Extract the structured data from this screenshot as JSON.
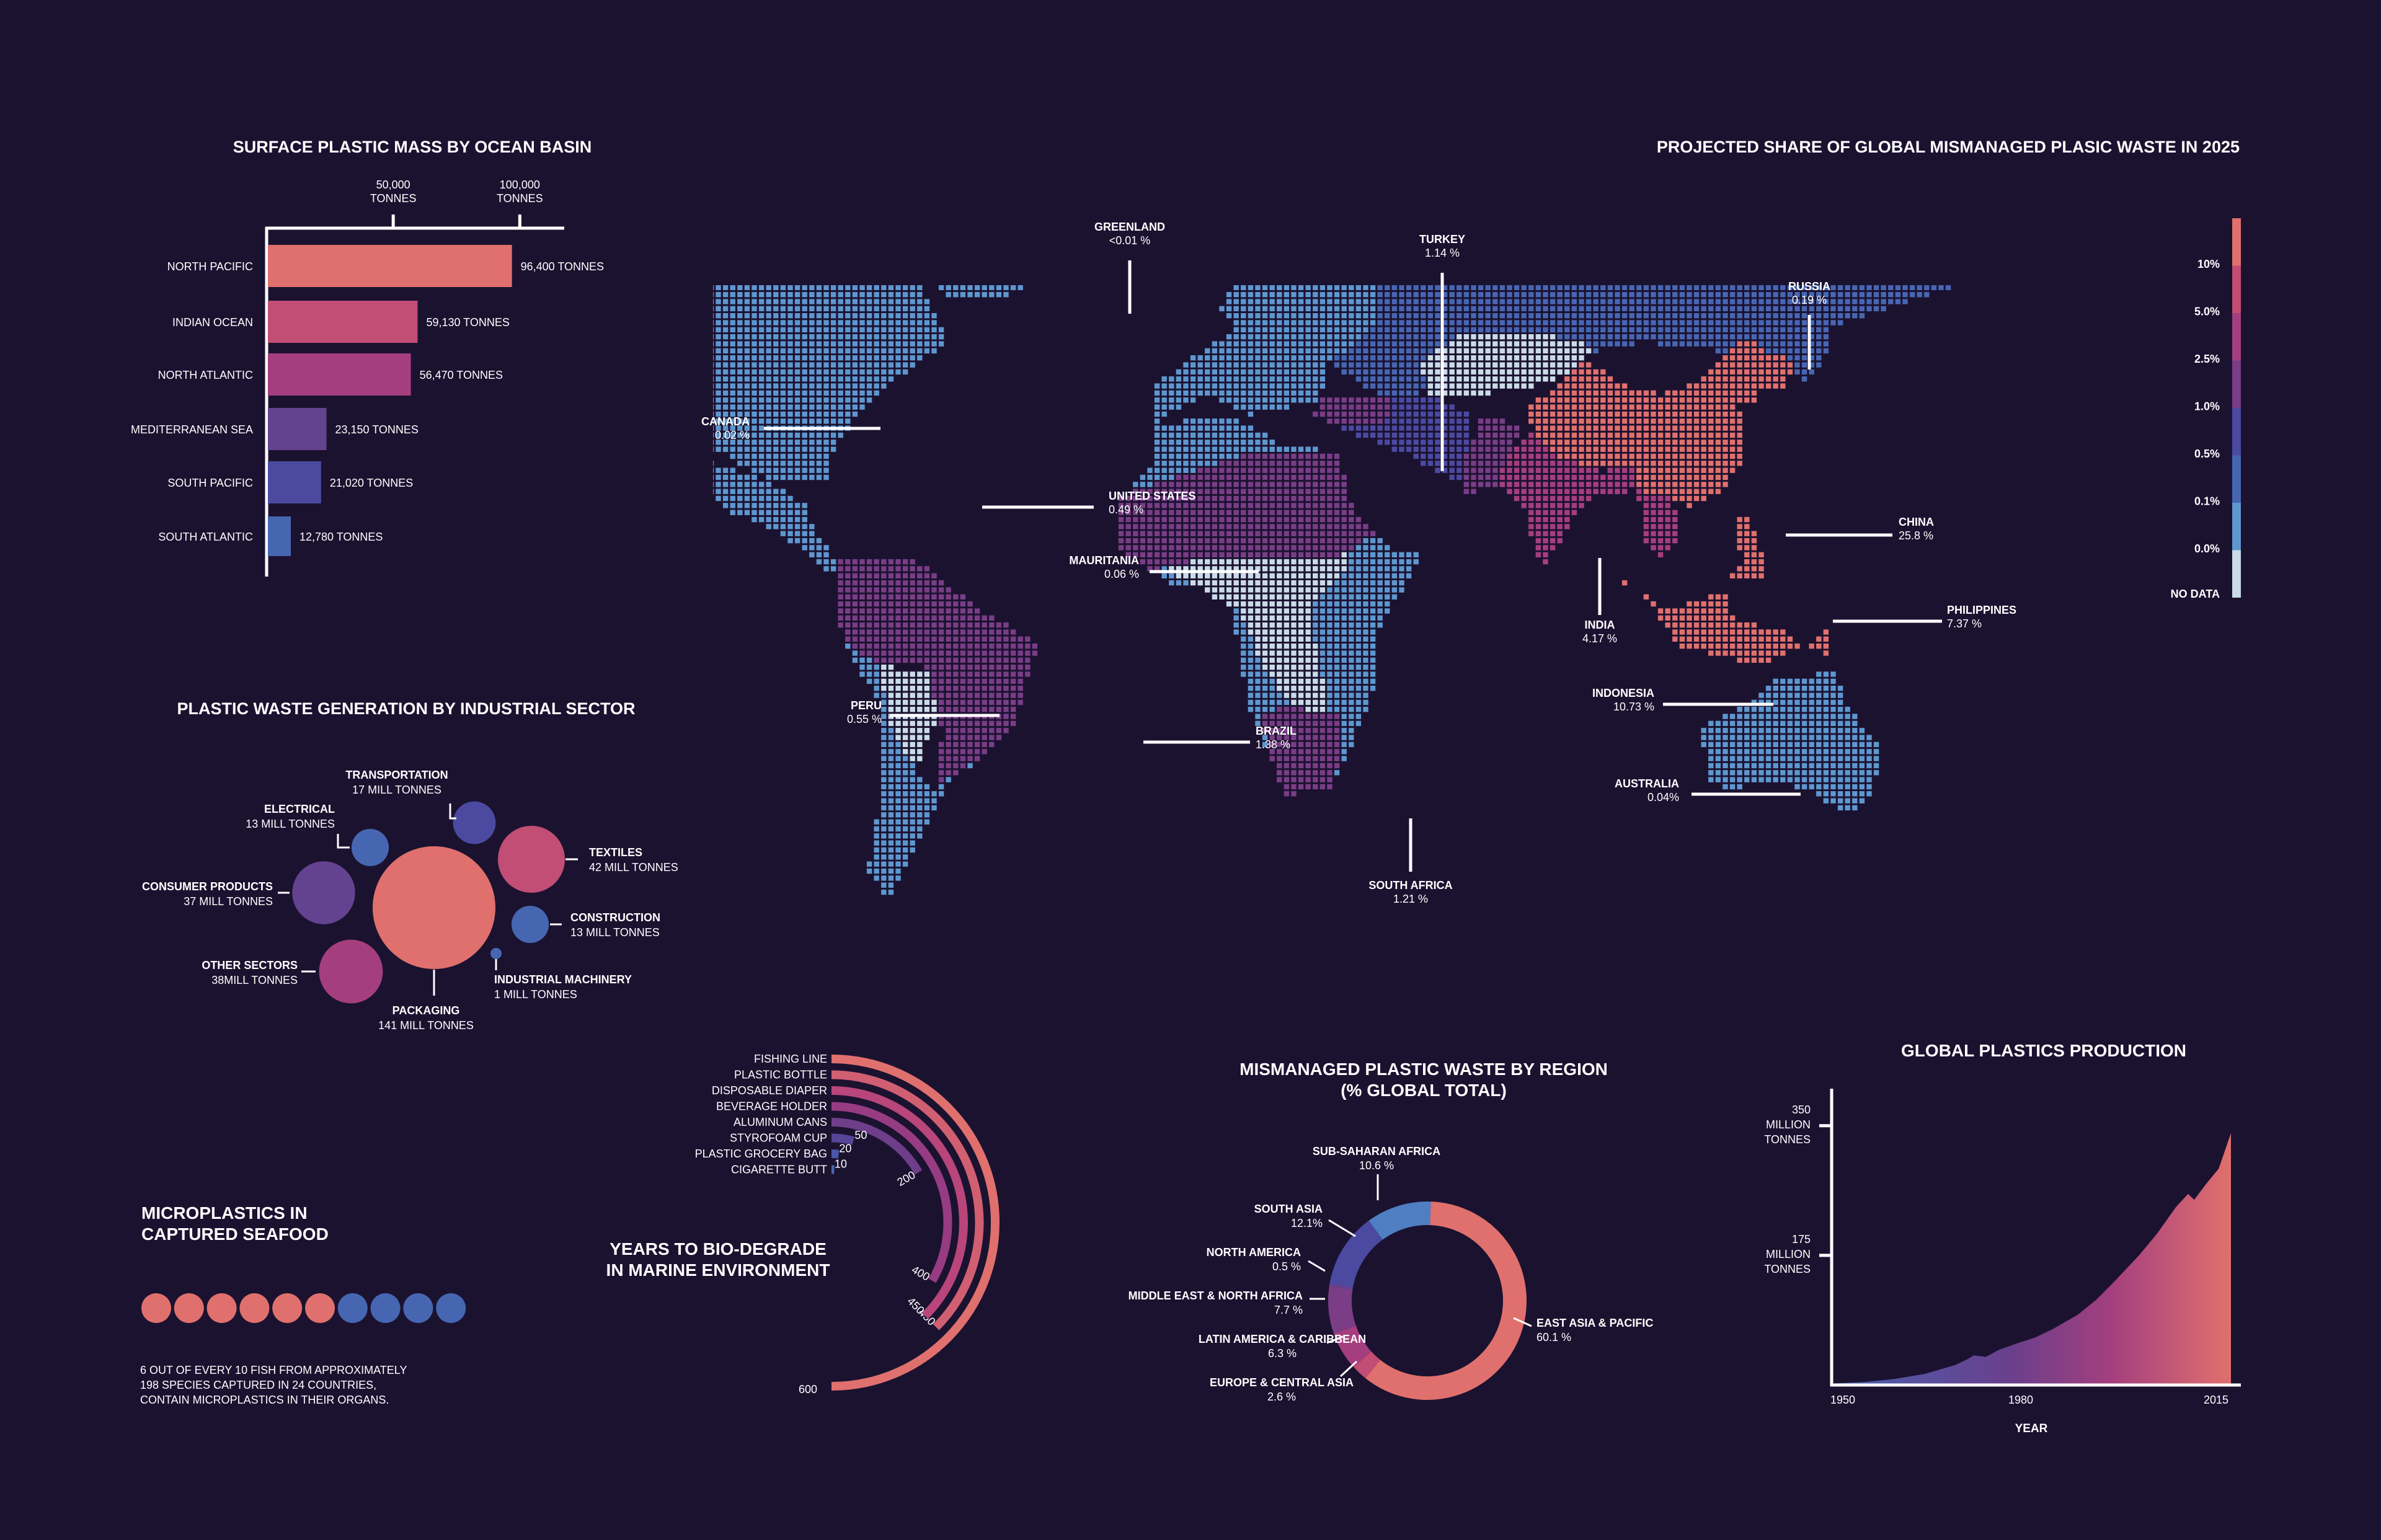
{
  "colors": {
    "background": "#1b1230",
    "coral": "#e0706d",
    "rose": "#c24d75",
    "magenta": "#a53e7e",
    "purple": "#7a3d86",
    "violet": "#63428f",
    "indigo": "#4b4aa0",
    "blue": "#4766b2",
    "sky": "#5e97cf",
    "pale": "#c9dbe8"
  },
  "chart_data": [
    {
      "id": "ocean",
      "type": "bar",
      "orientation": "horizontal",
      "title": "SURFACE PLASTIC MASS BY OCEAN BASIN",
      "ticks": [
        {
          "value": 50000,
          "label_line1": "50,000",
          "label_line2": "TONNES"
        },
        {
          "value": 100000,
          "label_line1": "100,000",
          "label_line2": "TONNES"
        }
      ],
      "xlim": [
        0,
        100000
      ],
      "categories": [
        "NORTH PACIFIC",
        "INDIAN OCEAN",
        "NORTH ATLANTIC",
        "MEDITERRANEAN SEA",
        "SOUTH PACIFIC",
        "SOUTH ATLANTIC"
      ],
      "values": [
        96400,
        59130,
        56470,
        23150,
        21020,
        12780
      ],
      "value_labels": [
        "96,400 TONNES",
        "59,130 TONNES",
        "56,470 TONNES",
        "23,150 TONNES",
        "21,020 TONNES",
        "12,780 TONNES"
      ],
      "bar_colors": [
        "#e0706d",
        "#c24d75",
        "#a53e7e",
        "#63428f",
        "#4b4aa0",
        "#4766b2"
      ]
    },
    {
      "id": "sector",
      "type": "bubble",
      "title": "PLASTIC WASTE GENERATION BY INDUSTRIAL SECTOR",
      "unit": "MILL TONNES",
      "items": [
        {
          "name": "PACKAGING",
          "value": 141,
          "label": "141 MILL TONNES",
          "color": "#e0706d"
        },
        {
          "name": "TEXTILES",
          "value": 42,
          "label": "42 MILL TONNES",
          "color": "#c24d75"
        },
        {
          "name": "OTHER SECTORS",
          "value": 38,
          "label": "38MILL TONNES",
          "color": "#a53e7e"
        },
        {
          "name": "CONSUMER PRODUCTS",
          "value": 37,
          "label": "37 MILL TONNES",
          "color": "#63428f"
        },
        {
          "name": "TRANSPORTATION",
          "value": 17,
          "label": "17 MILL TONNES",
          "color": "#4b4aa0"
        },
        {
          "name": "ELECTRICAL",
          "value": 13,
          "label": "13 MILL TONNES",
          "color": "#4766b2"
        },
        {
          "name": "CONSTRUCTION",
          "value": 13,
          "label": "13 MILL TONNES",
          "color": "#4766b2"
        },
        {
          "name": "INDUSTRIAL MACHINERY",
          "value": 1,
          "label": "1 MILL TONNES",
          "color": "#4766b2"
        }
      ]
    },
    {
      "id": "seafood",
      "type": "pictogram",
      "title_line1": "MICROPLASTICS IN",
      "title_line2": "CAPTURED SEAFOOD",
      "total": 10,
      "highlighted": 6,
      "highlight_color": "#e0706d",
      "rest_color": "#4766b2",
      "note_lines": [
        "6 OUT OF EVERY 10 FISH FROM APPROXIMATELY",
        "198 SPECIES CAPTURED IN 24 COUNTRIES,",
        "CONTAIN MICROPLASTICS IN THEIR ORGANS."
      ]
    },
    {
      "id": "degrade",
      "type": "radial-bar",
      "title_line1": "YEARS TO BIO-DEGRADE",
      "title_line2": "IN MARINE ENVIRONMENT",
      "max": 600,
      "items": [
        {
          "name": "FISHING LINE",
          "value": 600,
          "label": "600",
          "color": "#e0706d"
        },
        {
          "name": "PLASTIC BOTTLE",
          "value": 450,
          "label": "450",
          "color": "#d05f72"
        },
        {
          "name": "DISPOSABLE DIAPER",
          "value": 450,
          "label": "450",
          "color": "#b8467a"
        },
        {
          "name": "BEVERAGE HOLDER",
          "value": 400,
          "label": "400",
          "color": "#973c82"
        },
        {
          "name": "ALUMINUM CANS",
          "value": 200,
          "label": "200",
          "color": "#6e3e8a"
        },
        {
          "name": "STYROFOAM CUP",
          "value": 50,
          "label": "50",
          "color": "#544596"
        },
        {
          "name": "PLASTIC GROCERY BAG",
          "value": 20,
          "label": "20",
          "color": "#4a56a8"
        },
        {
          "name": "CIGARETTE BUTT",
          "value": 10,
          "label": "10",
          "color": "#4766b2"
        }
      ]
    },
    {
      "id": "region",
      "type": "pie",
      "variant": "donut",
      "title_line1": "MISMANAGED PLASTIC WASTE BY REGION",
      "title_line2": "(% GLOBAL TOTAL)",
      "slices": [
        {
          "name": "EAST ASIA & PACIFIC",
          "value": 60.1,
          "label": "60.1 %",
          "color": "#e0706d"
        },
        {
          "name": "EUROPE & CENTRAL ASIA",
          "value": 2.6,
          "label": "2.6 %",
          "color": "#c24d75"
        },
        {
          "name": "LATIN AMERICA & CARIBBEAN",
          "value": 6.3,
          "label": "6.3 %",
          "color": "#a53e7e"
        },
        {
          "name": "MIDDLE EAST & NORTH AFRICA",
          "value": 7.7,
          "label": "7.7 %",
          "color": "#7a3d86"
        },
        {
          "name": "NORTH AMERICA",
          "value": 0.5,
          "label": "0.5 %",
          "color": "#63428f"
        },
        {
          "name": "SOUTH ASIA",
          "value": 12.1,
          "label": "12.1%",
          "color": "#4b4aa0"
        },
        {
          "name": "SUB-SAHARAN AFRICA",
          "value": 10.6,
          "label": "10.6 %",
          "color": "#4f7fc2"
        }
      ]
    },
    {
      "id": "production",
      "type": "area",
      "title": "GLOBAL PLASTICS PRODUCTION",
      "xlabel": "YEAR",
      "x_ticks": [
        "1950",
        "1980",
        "2015"
      ],
      "xlim": [
        1950,
        2015
      ],
      "ylim": [
        0,
        400
      ],
      "y_ticks": [
        {
          "value": 175,
          "line1": "175",
          "line2": "MILLION",
          "line3": "TONNES"
        },
        {
          "value": 350,
          "line1": "350",
          "line2": "MILLION",
          "line3": "TONNES"
        }
      ],
      "x": [
        1950,
        1955,
        1960,
        1965,
        1970,
        1972,
        1973,
        1975,
        1977,
        1980,
        1983,
        1986,
        1990,
        1993,
        1996,
        2000,
        2003,
        2006,
        2008,
        2009,
        2011,
        2013,
        2015
      ],
      "y": [
        2,
        4,
        8,
        15,
        27,
        35,
        40,
        38,
        47,
        56,
        64,
        76,
        95,
        115,
        140,
        175,
        205,
        240,
        258,
        250,
        272,
        292,
        340
      ]
    },
    {
      "id": "map",
      "type": "choropleth",
      "title": "PROJECTED SHARE OF GLOBAL MISMANAGED PLASIC WASTE IN 2025",
      "legend": [
        {
          "label": "10%",
          "color": "#e0706d"
        },
        {
          "label": "5.0%",
          "color": "#c24d75"
        },
        {
          "label": "2.5%",
          "color": "#a53e7e"
        },
        {
          "label": "1.0%",
          "color": "#7a3d86"
        },
        {
          "label": "0.5%",
          "color": "#4b4aa0"
        },
        {
          "label": "0.1%",
          "color": "#4766b2"
        },
        {
          "label": "0.0%",
          "color": "#5e97cf"
        },
        {
          "label": "NO DATA",
          "color": "#c9dbe8"
        }
      ],
      "countries": [
        {
          "name": "GREENLAND",
          "value": "<0.01 %"
        },
        {
          "name": "TURKEY",
          "value": "1.14 %"
        },
        {
          "name": "RUSSIA",
          "value": "0.19 %"
        },
        {
          "name": "CANADA",
          "value": "0.02 %"
        },
        {
          "name": "UNITED STATES",
          "value": "0.49 %"
        },
        {
          "name": "CHINA",
          "value": "25.8 %"
        },
        {
          "name": "MAURITANIA",
          "value": "0.06 %"
        },
        {
          "name": "PHILIPPINES",
          "value": "7.37 %"
        },
        {
          "name": "INDIA",
          "value": "4.17 %"
        },
        {
          "name": "INDONESIA",
          "value": "10.73 %"
        },
        {
          "name": "PERU",
          "value": "0.55 %"
        },
        {
          "name": "BRAZIL",
          "value": "1.38 %"
        },
        {
          "name": "AUSTRALIA",
          "value": "0.04%"
        },
        {
          "name": "SOUTH AFRICA",
          "value": "1.21 %"
        }
      ]
    }
  ]
}
